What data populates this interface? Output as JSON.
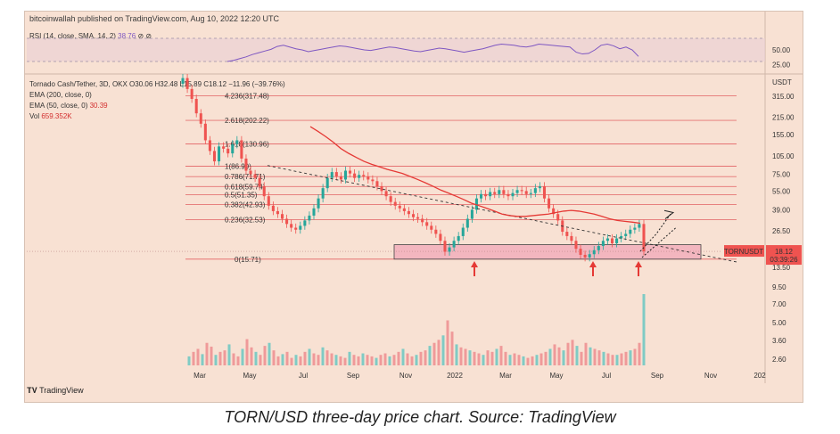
{
  "header": {
    "publisher": "bitcoinwallah published on TradingView.com, Aug 10, 2022 12:20 UTC"
  },
  "rsi": {
    "label": "RSI (14, close, SMA, 14, 2)",
    "value": "38.76",
    "icons": "⊘ ⊘"
  },
  "legend": {
    "symbol": "Tornado Cash/Tether, 3D, OKX  O30.06  H32.48  L15.89  C18.12  −11.96 (−39.76%)",
    "ema200_label": "EMA (200, close, 0)",
    "ema50_label": "EMA (50, close, 0)",
    "ema50_value": "30.39",
    "vol_label": "Vol",
    "vol_value": "659.352K"
  },
  "price_tag": {
    "symbol": "TORNUSDT",
    "price": "18.12",
    "countdown": "03:39:26"
  },
  "logo": "TradingView",
  "caption": "TORN/USD three-day price chart. Source: TradingView",
  "colors": {
    "background": "#f8e1d3",
    "up": "#26a69a",
    "down": "#ef5350",
    "ema50": "#e53935",
    "rsi": "#7e57c2",
    "fib": "#e57373",
    "support_zone": "#f3b6bf",
    "arrow": "#e53935"
  },
  "chart_data": [
    {
      "type": "line",
      "title": "RSI (14, close, SMA, 14, 2)",
      "yticks": [
        "50.00",
        "25.00"
      ],
      "series": [
        {
          "name": "RSI",
          "values": [
            30,
            32,
            35,
            38,
            42,
            45,
            48,
            51,
            56,
            58,
            55,
            52,
            50,
            47,
            49,
            51,
            53,
            55,
            57,
            56,
            54,
            52,
            50,
            49,
            51,
            53,
            55,
            54,
            52,
            50,
            48,
            47,
            49,
            51,
            53,
            52,
            50,
            48,
            46,
            48,
            50,
            52,
            55,
            58,
            60,
            59,
            58,
            56,
            55,
            57,
            60,
            59,
            58,
            57,
            56,
            55,
            46,
            43,
            44,
            50,
            58,
            60,
            57,
            52,
            55,
            50,
            38.76
          ]
        }
      ]
    },
    {
      "type": "candlestick",
      "title": "Tornado Cash/Tether, 3D, OKX",
      "x_ticks": [
        "Mar",
        "May",
        "Jul",
        "Sep",
        "Nov",
        "2022",
        "Mar",
        "May",
        "Jul",
        "Sep",
        "Nov",
        "202"
      ],
      "y_ticks": [
        "USDT",
        "315.00",
        "215.00",
        "155.00",
        "105.00",
        "75.00",
        "55.00",
        "39.00",
        "26.50",
        "18.12",
        "13.50",
        "9.50",
        "7.00",
        "5.00",
        "3.60",
        "2.60"
      ],
      "fib_levels": [
        {
          "ratio": "4.236",
          "price": 317.48,
          "label": "4.236(317.48)"
        },
        {
          "ratio": "2.618",
          "price": 202.22,
          "label": "2.618(202.22)"
        },
        {
          "ratio": "1.618",
          "price": 130.96,
          "label": "1.618(130.96)"
        },
        {
          "ratio": "1",
          "price": 86.9,
          "label": "1(86.90)"
        },
        {
          "ratio": "0.786",
          "price": 71.71,
          "label": "0.786(71.71)"
        },
        {
          "ratio": "0.618",
          "price": 59.74,
          "label": "0.618(59.74)"
        },
        {
          "ratio": "0.5",
          "price": 51.35,
          "label": "0.5(51.35)"
        },
        {
          "ratio": "0.382",
          "price": 42.93,
          "label": "0.382(42.93)"
        },
        {
          "ratio": "0.236",
          "price": 32.53,
          "label": "0.236(32.53)"
        },
        {
          "ratio": "0",
          "price": 15.71,
          "label": "0(15.71)"
        }
      ],
      "support_zone": [
        15.71,
        20.5
      ],
      "ohlc_closes": [
        440,
        360,
        300,
        230,
        190,
        140,
        115,
        95,
        125,
        120,
        110,
        130,
        140,
        100,
        80,
        75,
        70,
        60,
        50,
        42,
        38,
        36,
        33,
        30,
        28,
        27,
        29,
        32,
        35,
        40,
        48,
        58,
        70,
        78,
        72,
        68,
        80,
        76,
        70,
        74,
        72,
        68,
        66,
        60,
        55,
        50,
        45,
        42,
        40,
        38,
        36,
        34,
        33,
        31,
        29,
        27,
        25,
        22,
        18,
        19.5,
        22,
        24,
        28,
        33,
        39,
        48,
        52,
        50,
        54,
        52,
        56,
        52,
        50,
        53,
        56,
        55,
        52,
        53,
        58,
        60,
        48,
        40,
        36,
        32,
        26,
        24,
        22,
        19,
        17,
        16.2,
        17.2,
        18.5,
        20,
        22,
        23,
        21,
        23,
        24,
        25,
        27,
        28,
        30,
        18.12
      ],
      "ema50": [
        180,
        165,
        150,
        135,
        120,
        110,
        102,
        95,
        90,
        86,
        82,
        79,
        76,
        72,
        68,
        64,
        60,
        56,
        53,
        50,
        47,
        44,
        42,
        40,
        38,
        36,
        35,
        34.5,
        34.5,
        35,
        35.5,
        36,
        37,
        38,
        38.5,
        38,
        37,
        36,
        34.5,
        33,
        32,
        31.5,
        31,
        30.39
      ],
      "volume": [
        12,
        18,
        22,
        15,
        30,
        25,
        14,
        18,
        20,
        28,
        16,
        12,
        22,
        35,
        24,
        18,
        14,
        26,
        30,
        20,
        12,
        15,
        18,
        10,
        14,
        12,
        18,
        22,
        16,
        14,
        24,
        20,
        16,
        14,
        12,
        10,
        18,
        14,
        12,
        16,
        14,
        12,
        10,
        14,
        16,
        12,
        14,
        18,
        22,
        16,
        12,
        14,
        18,
        20,
        26,
        30,
        34,
        40,
        60,
        45,
        28,
        24,
        22,
        20,
        18,
        16,
        14,
        20,
        18,
        22,
        26,
        18,
        14,
        16,
        14,
        12,
        10,
        12,
        14,
        16,
        18,
        22,
        28,
        24,
        20,
        30,
        34,
        26,
        18,
        30,
        24,
        22,
        20,
        18,
        16,
        14,
        14,
        16,
        18,
        20,
        22,
        30,
        95
      ],
      "volume_last": "659.352K",
      "arrows": [
        "Jan 2022 low",
        "Jun 2022 low",
        "Aug 2022 low"
      ]
    }
  ]
}
